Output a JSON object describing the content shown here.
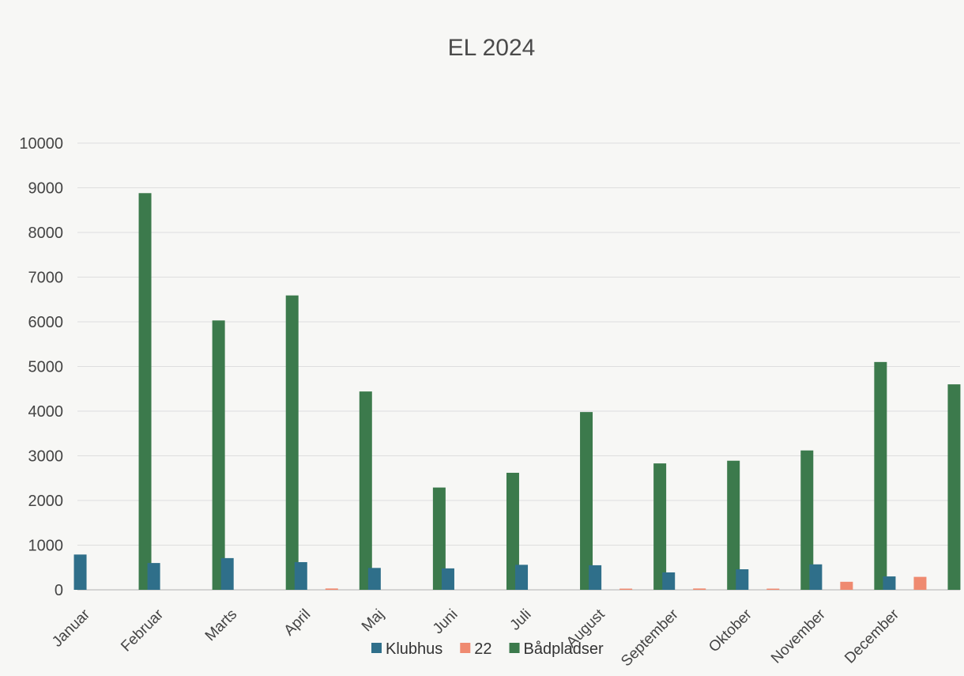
{
  "chart_data": {
    "type": "bar",
    "title": "EL 2024",
    "xlabel": "",
    "ylabel": "",
    "ylim": [
      0,
      10000
    ],
    "yticks": [
      0,
      1000,
      2000,
      3000,
      4000,
      5000,
      6000,
      7000,
      8000,
      9000,
      10000
    ],
    "grid": true,
    "legend_position": "bottom",
    "categories": [
      "Januar",
      "Februar",
      "Marts",
      "April",
      "Maj",
      "Juni",
      "Juli",
      "August",
      "September",
      "Oktober",
      "November",
      "December"
    ],
    "series": [
      {
        "name": "Klubhus",
        "color": "#2f6f8a",
        "values": [
          790,
          600,
          710,
          620,
          490,
          480,
          560,
          550,
          390,
          460,
          570,
          300
        ]
      },
      {
        "name": "22",
        "color": "#ef8a70",
        "values": [
          0,
          0,
          0,
          30,
          0,
          0,
          0,
          10,
          30,
          10,
          180,
          290
        ]
      },
      {
        "name": "Bådpladser",
        "color": "#3c7a4c",
        "values": [
          8880,
          6030,
          6590,
          4440,
          2290,
          2620,
          3980,
          2830,
          2890,
          3120,
          5100,
          4600
        ]
      }
    ]
  }
}
